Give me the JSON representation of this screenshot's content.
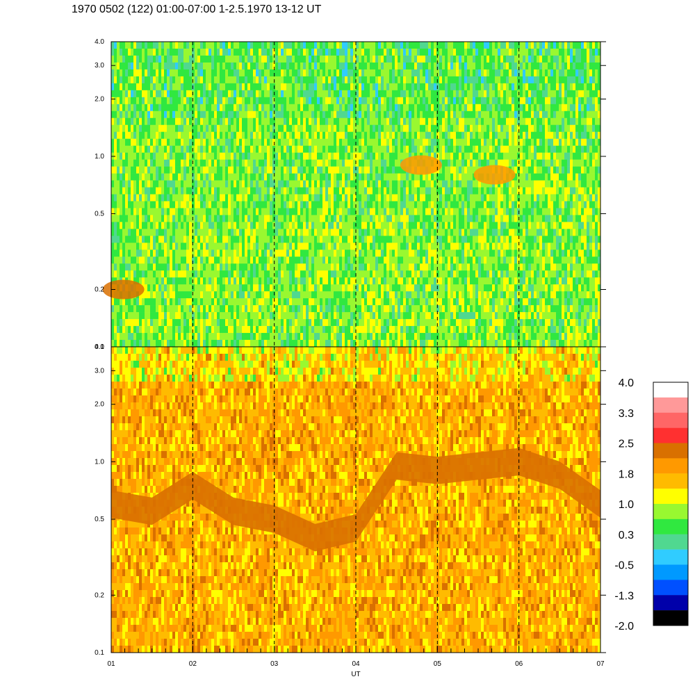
{
  "title": "1970 0502 (122) 01:00-07:00 1-2.5.1970  13-12 UT",
  "colors": {
    "scale": [
      "#000000",
      "#0000aa",
      "#0050ff",
      "#0099ff",
      "#30ccff",
      "#50d890",
      "#30e840",
      "#99f830",
      "#ffff00",
      "#ffbb00",
      "#ff9900",
      "#d97000",
      "#ff3030",
      "#ff6666",
      "#ff9999",
      "#ffffff"
    ]
  },
  "chart_data": [
    {
      "type": "heatmap",
      "panel": "upper",
      "x": [
        "01",
        "02",
        "03",
        "04",
        "05",
        "06",
        "07"
      ],
      "xlabel": "",
      "ylabel": "",
      "ylim": [
        0.1,
        4.0
      ],
      "y_scale": "log",
      "y_ticks": [
        "0.1",
        "0.2",
        "0.5",
        "1.0",
        "2.0",
        "3.0",
        "4.0"
      ],
      "dominant_levels": [
        0.3,
        0.7,
        1.0
      ],
      "features": [
        {
          "x": 5.7,
          "y": 0.8,
          "level": 1.8
        },
        {
          "x": 4.8,
          "y": 0.9,
          "level": 1.8
        },
        {
          "x": 1.15,
          "y": 0.2,
          "level": 2.5
        }
      ],
      "grid": "dashed vertical lines at each hour"
    },
    {
      "type": "heatmap",
      "panel": "lower",
      "x": [
        "01",
        "02",
        "03",
        "04",
        "05",
        "06",
        "07"
      ],
      "xlabel": "UT",
      "ylabel": "",
      "ylim": [
        0.1,
        4.0
      ],
      "y_scale": "log",
      "y_ticks": [
        "0.1",
        "0.2",
        "0.5",
        "1.0",
        "2.0",
        "3.0",
        "4.0"
      ],
      "dominant_levels": [
        1.4,
        1.8,
        2.1
      ],
      "band": {
        "level": 2.3,
        "x": [
          1.0,
          1.5,
          2.0,
          2.5,
          3.0,
          3.5,
          4.0,
          4.5,
          5.0,
          5.5,
          6.0,
          6.5,
          7.0
        ],
        "y": [
          0.6,
          0.55,
          0.75,
          0.55,
          0.5,
          0.4,
          0.45,
          0.95,
          0.9,
          0.95,
          1.0,
          0.85,
          0.6
        ]
      },
      "grid": "dashed vertical lines at each hour"
    }
  ],
  "colorbar": {
    "labels": [
      "4.0",
      "3.3",
      "2.5",
      "1.8",
      "1.0",
      "0.3",
      "-0.5",
      "-1.3",
      "-2.0"
    ]
  }
}
